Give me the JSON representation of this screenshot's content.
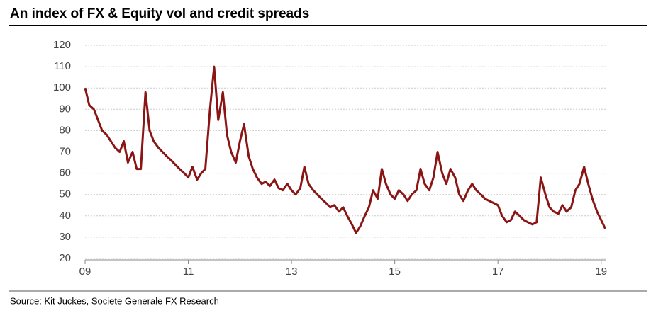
{
  "chart_data": {
    "type": "line",
    "title": "An index of FX & Equity vol and credit spreads",
    "source": "Source: Kit Juckes, Societe Generale FX Research",
    "x": [
      2009,
      2009.08,
      2009.17,
      2009.25,
      2009.33,
      2009.42,
      2009.5,
      2009.58,
      2009.67,
      2009.75,
      2009.83,
      2009.92,
      2010,
      2010.08,
      2010.17,
      2010.25,
      2010.33,
      2010.42,
      2010.5,
      2010.58,
      2010.67,
      2010.75,
      2010.83,
      2010.92,
      2011,
      2011.08,
      2011.17,
      2011.25,
      2011.33,
      2011.42,
      2011.5,
      2011.58,
      2011.67,
      2011.75,
      2011.83,
      2011.92,
      2012,
      2012.08,
      2012.17,
      2012.25,
      2012.33,
      2012.42,
      2012.5,
      2012.58,
      2012.67,
      2012.75,
      2012.83,
      2012.92,
      2013,
      2013.08,
      2013.17,
      2013.25,
      2013.33,
      2013.42,
      2013.5,
      2013.58,
      2013.67,
      2013.75,
      2013.83,
      2013.92,
      2014,
      2014.08,
      2014.17,
      2014.25,
      2014.33,
      2014.42,
      2014.5,
      2014.58,
      2014.67,
      2014.75,
      2014.83,
      2014.92,
      2015,
      2015.08,
      2015.17,
      2015.25,
      2015.33,
      2015.42,
      2015.5,
      2015.58,
      2015.67,
      2015.75,
      2015.83,
      2015.92,
      2016,
      2016.08,
      2016.17,
      2016.25,
      2016.33,
      2016.42,
      2016.5,
      2016.58,
      2016.67,
      2016.75,
      2016.83,
      2016.92,
      2017,
      2017.08,
      2017.17,
      2017.25,
      2017.33,
      2017.42,
      2017.5,
      2017.58,
      2017.67,
      2017.75,
      2017.83,
      2017.92,
      2018,
      2018.08,
      2018.17,
      2018.25,
      2018.33,
      2018.42,
      2018.5,
      2018.58,
      2018.67,
      2018.75,
      2018.83,
      2018.92,
      2019,
      2019.08
    ],
    "series": [
      {
        "color": "#8b1515",
        "values": [
          100,
          92,
          90,
          85,
          80,
          78,
          75,
          72,
          70,
          75,
          65,
          70,
          62,
          62,
          98,
          80,
          75,
          72,
          70,
          68,
          66,
          64,
          62,
          60,
          58,
          63,
          57,
          60,
          62,
          90,
          110,
          85,
          98,
          78,
          70,
          65,
          75,
          83,
          68,
          62,
          58,
          55,
          56,
          54,
          57,
          53,
          52,
          55,
          52,
          50,
          53,
          63,
          55,
          52,
          50,
          48,
          46,
          44,
          45,
          42,
          44,
          40,
          36,
          32,
          35,
          40,
          44,
          52,
          48,
          62,
          55,
          50,
          48,
          52,
          50,
          47,
          50,
          52,
          62,
          55,
          52,
          58,
          70,
          60,
          55,
          62,
          58,
          50,
          47,
          52,
          55,
          52,
          50,
          48,
          47,
          46,
          45,
          40,
          37,
          38,
          42,
          40,
          38,
          37,
          36,
          37,
          58,
          50,
          44,
          42,
          41,
          45,
          42,
          44,
          52,
          55,
          63,
          55,
          48,
          42,
          38,
          34
        ]
      }
    ],
    "xlim": [
      2009,
      2019.1
    ],
    "xticks": [
      {
        "value": 2009,
        "label": "09"
      },
      {
        "value": 2011,
        "label": "11"
      },
      {
        "value": 2013,
        "label": "13"
      },
      {
        "value": 2015,
        "label": "15"
      },
      {
        "value": 2017,
        "label": "17"
      },
      {
        "value": 2019,
        "label": "19"
      }
    ],
    "ylim": [
      20,
      120
    ],
    "yticks": [
      20,
      30,
      40,
      50,
      60,
      70,
      80,
      90,
      100,
      110,
      120
    ],
    "grid": true
  }
}
